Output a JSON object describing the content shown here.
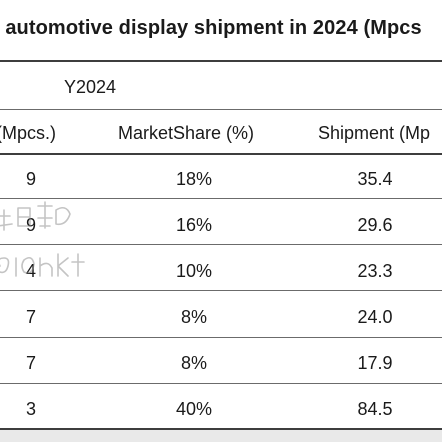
{
  "table": {
    "title": "l automotive display shipment in 2024 (Mpcs",
    "year_header": "Y2024",
    "column_headers": [
      "(Mpcs.)",
      "MarketShare (%)",
      "Shipment (Mp"
    ],
    "rows": [
      {
        "c1": "9",
        "c2": "18%",
        "c3": "35.4"
      },
      {
        "c1": "9",
        "c2": "16%",
        "c3": "29.6"
      },
      {
        "c1": "4",
        "c2": "10%",
        "c3": "23.3"
      },
      {
        "c1": "7",
        "c2": "8%",
        "c3": "24.0"
      },
      {
        "c1": "7",
        "c2": "8%",
        "c3": "17.9"
      },
      {
        "c1": "3",
        "c2": "40%",
        "c3": "84.5"
      }
    ]
  },
  "watermark_text": "群智咨询 Sigmaintell"
}
